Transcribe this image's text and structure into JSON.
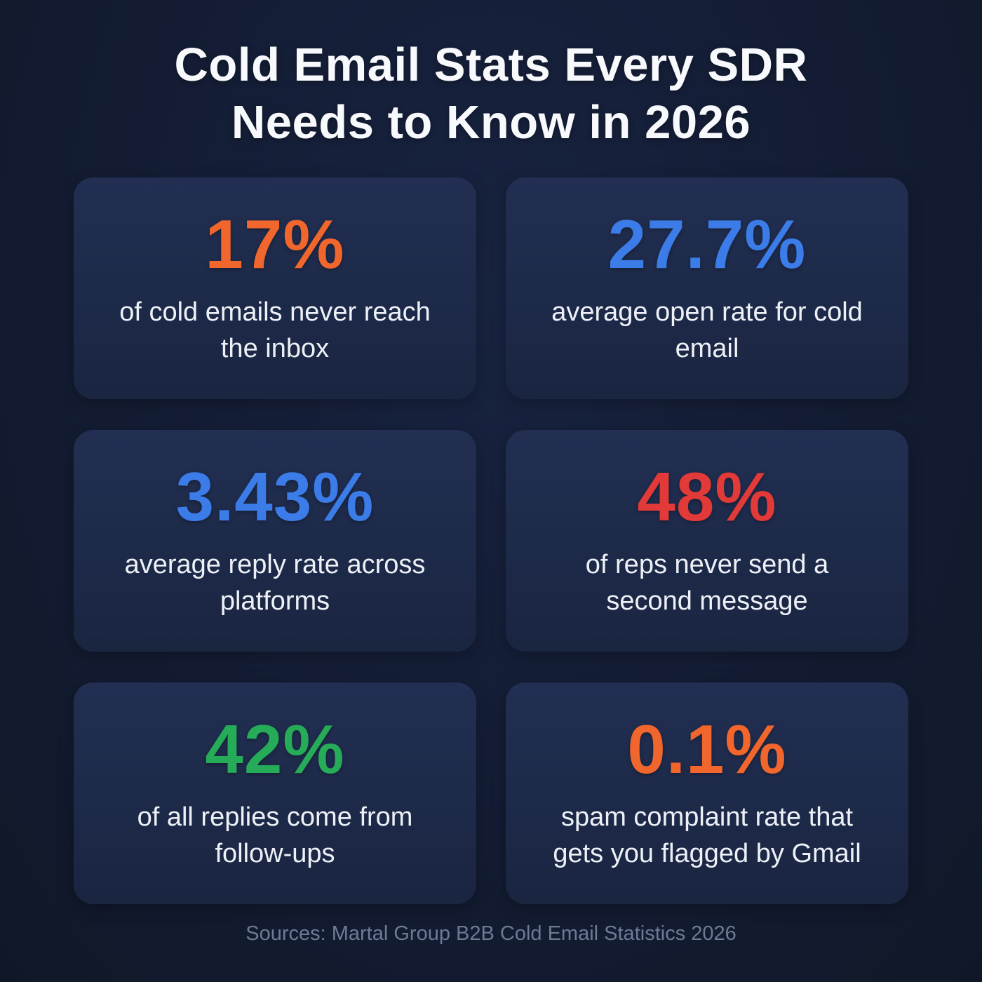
{
  "title": {
    "line1": "Cold Email Stats Every SDR",
    "line2": "Needs to Know in 2026"
  },
  "cards": [
    {
      "value": "17%",
      "color": "#f0662c",
      "description": "of cold emails never reach the inbox"
    },
    {
      "value": "27.7%",
      "color": "#3b7ce8",
      "description": "average open rate for cold email"
    },
    {
      "value": "3.43%",
      "color": "#3b7ce8",
      "description": "average reply rate across platforms"
    },
    {
      "value": "48%",
      "color": "#e23a38",
      "description": "of reps never send a second message"
    },
    {
      "value": "42%",
      "color": "#26ac58",
      "description": "of all replies come from follow-ups"
    },
    {
      "value": "0.1%",
      "color": "#f0662c",
      "description": "spam complaint rate that gets you flagged by Gmail"
    }
  ],
  "footer": {
    "source": "Sources: Martal Group B2B Cold Email Statistics 2026"
  },
  "theme": {
    "background": "#131c33",
    "card": "#1d2946",
    "text": "#edf1f7",
    "muted": "#6e7a96"
  }
}
